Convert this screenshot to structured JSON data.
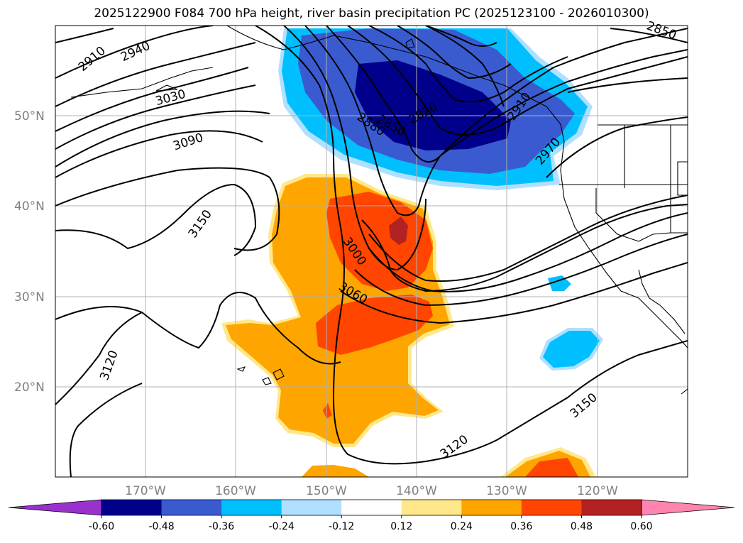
{
  "title": "2025122900 F084 700 hPa height, river basin precipitation PC (2025123100 - 2026010300)",
  "lat_labels": [
    "50°N",
    "40°N",
    "30°N",
    "20°N"
  ],
  "lon_labels": [
    "170°W",
    "160°W",
    "150°W",
    "140°W",
    "130°W",
    "120°W"
  ],
  "contour_labels": [
    "2910",
    "2940",
    "3030",
    "3090",
    "3150",
    "3120",
    "2850",
    "2880",
    "2820",
    "2910",
    "2970",
    "3000",
    "3060",
    "3120",
    "3150",
    "2850"
  ],
  "colorbar": {
    "ticks": [
      "-0.60",
      "-0.48",
      "-0.36",
      "-0.24",
      "-0.12",
      "0.12",
      "0.24",
      "0.36",
      "0.48",
      "0.60"
    ],
    "colors": [
      "#9932cc",
      "#00008b",
      "#3a5bd0",
      "#00bfff",
      "#b0e0ff",
      "#ffffff",
      "#ffe88a",
      "#ffa500",
      "#ff4500",
      "#b22222",
      "#ff85b0"
    ]
  }
}
